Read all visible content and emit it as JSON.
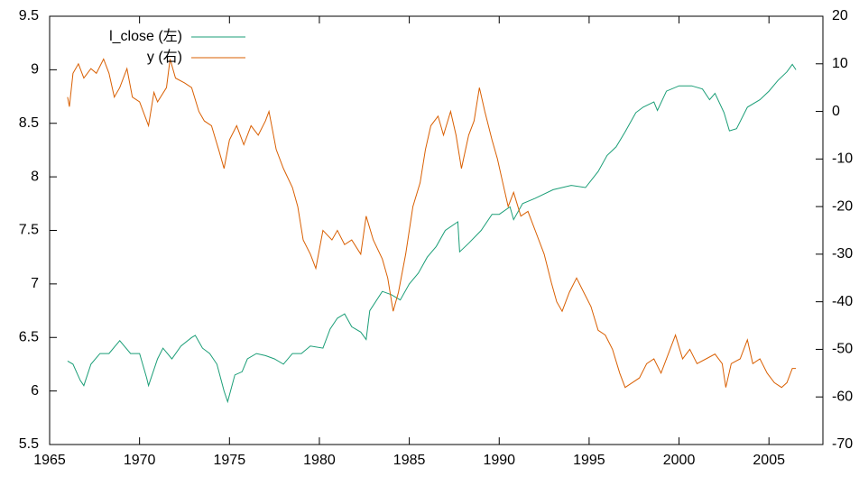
{
  "chart_data": {
    "type": "line",
    "xlim": [
      1965,
      2008
    ],
    "xticks": [
      1965,
      1970,
      1975,
      1980,
      1985,
      1990,
      1995,
      2000,
      2005
    ],
    "ylim": [
      5.5,
      9.5
    ],
    "yticks": [
      5.5,
      6,
      6.5,
      7,
      7.5,
      8,
      8.5,
      9,
      9.5
    ],
    "y2lim": [
      -70,
      20
    ],
    "y2ticks": [
      -70,
      -60,
      -50,
      -40,
      -30,
      -20,
      -10,
      0,
      10,
      20
    ],
    "grid": false,
    "legend": "top-left",
    "series": [
      {
        "name": "l_close (左)",
        "color": "#1b9e77",
        "x": [
          1966.0,
          1966.3,
          1966.7,
          1966.9,
          1967.3,
          1967.8,
          1968.3,
          1968.9,
          1969.5,
          1970.0,
          1970.4,
          1970.5,
          1971.0,
          1971.3,
          1971.8,
          1972.3,
          1972.9,
          1973.1,
          1973.5,
          1973.9,
          1974.3,
          1974.7,
          1974.9,
          1975.3,
          1975.7,
          1976.0,
          1976.5,
          1977.0,
          1977.5,
          1978.0,
          1978.5,
          1979.0,
          1979.5,
          1980.2,
          1980.6,
          1981.0,
          1981.4,
          1981.8,
          1982.3,
          1982.6,
          1982.8,
          1983.5,
          1984.0,
          1984.5,
          1985.0,
          1985.5,
          1986.0,
          1986.5,
          1987.0,
          1987.7,
          1987.8,
          1988.3,
          1989.0,
          1989.6,
          1990.0,
          1990.6,
          1990.8,
          1991.3,
          1992.0,
          1993.0,
          1994.0,
          1994.8,
          1995.5,
          1996.0,
          1996.5,
          1997.0,
          1997.6,
          1998.0,
          1998.6,
          1998.8,
          1999.3,
          2000.0,
          2000.7,
          2001.3,
          2001.7,
          2002.0,
          2002.5,
          2002.8,
          2003.2,
          2003.8,
          2004.5,
          2005.0,
          2005.5,
          2006.0,
          2006.3,
          2006.5
        ],
        "values": [
          6.28,
          6.25,
          6.1,
          6.05,
          6.25,
          6.35,
          6.35,
          6.47,
          6.35,
          6.35,
          6.12,
          6.05,
          6.3,
          6.4,
          6.3,
          6.42,
          6.5,
          6.52,
          6.4,
          6.35,
          6.25,
          6.0,
          5.9,
          6.15,
          6.18,
          6.3,
          6.35,
          6.33,
          6.3,
          6.25,
          6.35,
          6.35,
          6.42,
          6.4,
          6.58,
          6.68,
          6.72,
          6.6,
          6.55,
          6.48,
          6.75,
          6.93,
          6.9,
          6.85,
          7.0,
          7.1,
          7.25,
          7.35,
          7.5,
          7.58,
          7.3,
          7.38,
          7.5,
          7.65,
          7.65,
          7.72,
          7.6,
          7.75,
          7.8,
          7.88,
          7.92,
          7.9,
          8.05,
          8.2,
          8.28,
          8.42,
          8.6,
          8.65,
          8.7,
          8.62,
          8.8,
          8.85,
          8.85,
          8.82,
          8.72,
          8.78,
          8.6,
          8.43,
          8.45,
          8.65,
          8.72,
          8.8,
          8.9,
          8.98,
          9.05,
          9.0
        ]
      },
      {
        "name": "y (右)",
        "color": "#d95f02",
        "axis": "y2",
        "x": [
          1966.0,
          1966.1,
          1966.3,
          1966.6,
          1966.9,
          1967.3,
          1967.6,
          1968.0,
          1968.3,
          1968.6,
          1968.9,
          1969.3,
          1969.6,
          1970.0,
          1970.5,
          1970.8,
          1971.0,
          1971.5,
          1971.7,
          1972.0,
          1972.5,
          1972.9,
          1973.3,
          1973.6,
          1974.0,
          1974.4,
          1974.7,
          1975.0,
          1975.4,
          1975.8,
          1976.2,
          1976.6,
          1977.0,
          1977.2,
          1977.6,
          1978.0,
          1978.5,
          1978.8,
          1979.1,
          1979.5,
          1979.8,
          1980.2,
          1980.7,
          1981.0,
          1981.4,
          1981.8,
          1982.3,
          1982.6,
          1983.0,
          1983.5,
          1983.8,
          1984.1,
          1984.4,
          1984.8,
          1985.2,
          1985.6,
          1985.9,
          1986.2,
          1986.6,
          1986.9,
          1987.3,
          1987.6,
          1987.9,
          1988.3,
          1988.6,
          1988.9,
          1989.2,
          1989.6,
          1989.9,
          1990.2,
          1990.5,
          1990.8,
          1991.2,
          1991.6,
          1992.0,
          1992.5,
          1992.9,
          1993.2,
          1993.5,
          1993.9,
          1994.3,
          1994.7,
          1995.1,
          1995.5,
          1995.9,
          1996.3,
          1996.7,
          1997.0,
          1997.4,
          1997.8,
          1998.2,
          1998.6,
          1999.0,
          1999.5,
          1999.8,
          2000.2,
          2000.6,
          2001.0,
          2001.5,
          2002.0,
          2002.4,
          2002.6,
          2002.9,
          2003.4,
          2003.8,
          2004.1,
          2004.5,
          2004.9,
          2005.3,
          2005.7,
          2006.0,
          2006.3,
          2006.5
        ],
        "values": [
          3,
          1,
          8,
          10,
          7,
          9,
          8,
          11,
          8,
          3,
          5,
          9,
          3,
          2,
          -3,
          4,
          2,
          5,
          11,
          7,
          6,
          5,
          0,
          -2,
          -3,
          -8,
          -12,
          -6,
          -3,
          -7,
          -3,
          -5,
          -2,
          0,
          -8,
          -12,
          -16,
          -20,
          -27,
          -30,
          -33,
          -25,
          -27,
          -25,
          -28,
          -27,
          -30,
          -22,
          -27,
          -31,
          -35,
          -42,
          -38,
          -30,
          -20,
          -15,
          -8,
          -3,
          -1,
          -5,
          0,
          -5,
          -12,
          -5,
          -2,
          5,
          0,
          -6,
          -10,
          -15,
          -20,
          -17,
          -22,
          -21,
          -25,
          -30,
          -36,
          -40,
          -42,
          -38,
          -35,
          -38,
          -41,
          -46,
          -47,
          -50,
          -55,
          -58,
          -57,
          -56,
          -53,
          -52,
          -55,
          -50,
          -47,
          -52,
          -50,
          -53,
          -52,
          -51,
          -53,
          -58,
          -53,
          -52,
          -48,
          -53,
          -52,
          -55,
          -57,
          -58,
          -57,
          -54,
          -54
        ]
      }
    ]
  }
}
